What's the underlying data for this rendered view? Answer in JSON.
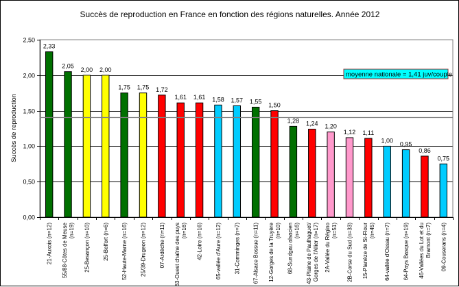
{
  "chart_data": {
    "type": "bar",
    "title": "Succès de reproduction en France en fonction des régions naturelles. Année 2012",
    "xlabel": "",
    "ylabel": "Succès de reproduction",
    "ylim": [
      0,
      2.5
    ],
    "yticks": [
      "0,00",
      "0,50",
      "1,00",
      "1,50",
      "2,00",
      "2,50"
    ],
    "ytick_values": [
      0,
      0.5,
      1,
      1.5,
      2,
      2.5
    ],
    "grid": true,
    "categories": [
      [
        "21-Auxois (n=12)"
      ],
      [
        "55/88-Côtes de Meuse",
        "(n=19)"
      ],
      [
        "25-Besançon (n=10)"
      ],
      [
        "25-Belfort (n=6)"
      ],
      [
        "52-Haute-Marne (n=16)"
      ],
      [
        "25/39-Drugeon (n=12)"
      ],
      [
        "07-Ardèche (n=11)"
      ],
      [
        "63-Ouest chaîne des puys",
        "(n=16)"
      ],
      [
        "42-Loire (n=16)"
      ],
      [
        "65-vallée d'Aure (n=12)"
      ],
      [
        "31-Comminges (n=7)"
      ],
      [
        "67-Alsace Bossue (n=11)"
      ],
      [
        "12-Gorges de la Truyère",
        "(n=10)"
      ],
      [
        "68-Sundgau alsacien",
        "(n=16)"
      ],
      [
        "43-Plaine de Paulhaguet/",
        "Gorges de l'Allier (n=17)"
      ],
      [
        "2A-Vallée du Régino",
        "(n=51)"
      ],
      [
        "2B-Corse du Sud (n=33)"
      ],
      [
        "15-Planèze de St-Flour",
        "(n=45)"
      ],
      [
        "64-vallée d'Ossau (n=7)"
      ],
      [
        "64-Pays Basque (n=19)"
      ],
      [
        "46-Vallées du Lot et du",
        "Bramont (n=7)"
      ],
      [
        "09-Couserans (n=4)"
      ]
    ],
    "values": [
      2.33,
      2.05,
      2.0,
      2.0,
      1.75,
      1.75,
      1.72,
      1.61,
      1.61,
      1.58,
      1.57,
      1.55,
      1.5,
      1.28,
      1.24,
      1.2,
      1.12,
      1.11,
      1.0,
      0.95,
      0.86,
      0.75
    ],
    "value_labels": [
      "2,33",
      "2,05",
      "2,00",
      "2,00",
      "1,75",
      "1,75",
      "1,72",
      "1,61",
      "1,61",
      "1,58",
      "1,57",
      "1,55",
      "1,50",
      "1,28",
      "1,24",
      "1,20",
      "1,12",
      "1,11",
      "1,00",
      "0,95",
      "0,86",
      "0,75"
    ],
    "bar_colors": [
      "#007000",
      "#007000",
      "#ffff00",
      "#ffff00",
      "#007000",
      "#ffff00",
      "#ff0000",
      "#ff0000",
      "#ff0000",
      "#00ccff",
      "#00ccff",
      "#007000",
      "#ff0000",
      "#007000",
      "#ff0000",
      "#ff99cc",
      "#ff99cc",
      "#ff0000",
      "#00ccff",
      "#00ccff",
      "#ff0000",
      "#00ccff"
    ],
    "reference_line": {
      "value": 1.41,
      "color": "#808080"
    },
    "annotation": {
      "text": "moyenne nationale = 1,41 juv/couple",
      "fill": "#00ffff",
      "border": "#993333",
      "placement": "top-right"
    },
    "legend": null
  }
}
